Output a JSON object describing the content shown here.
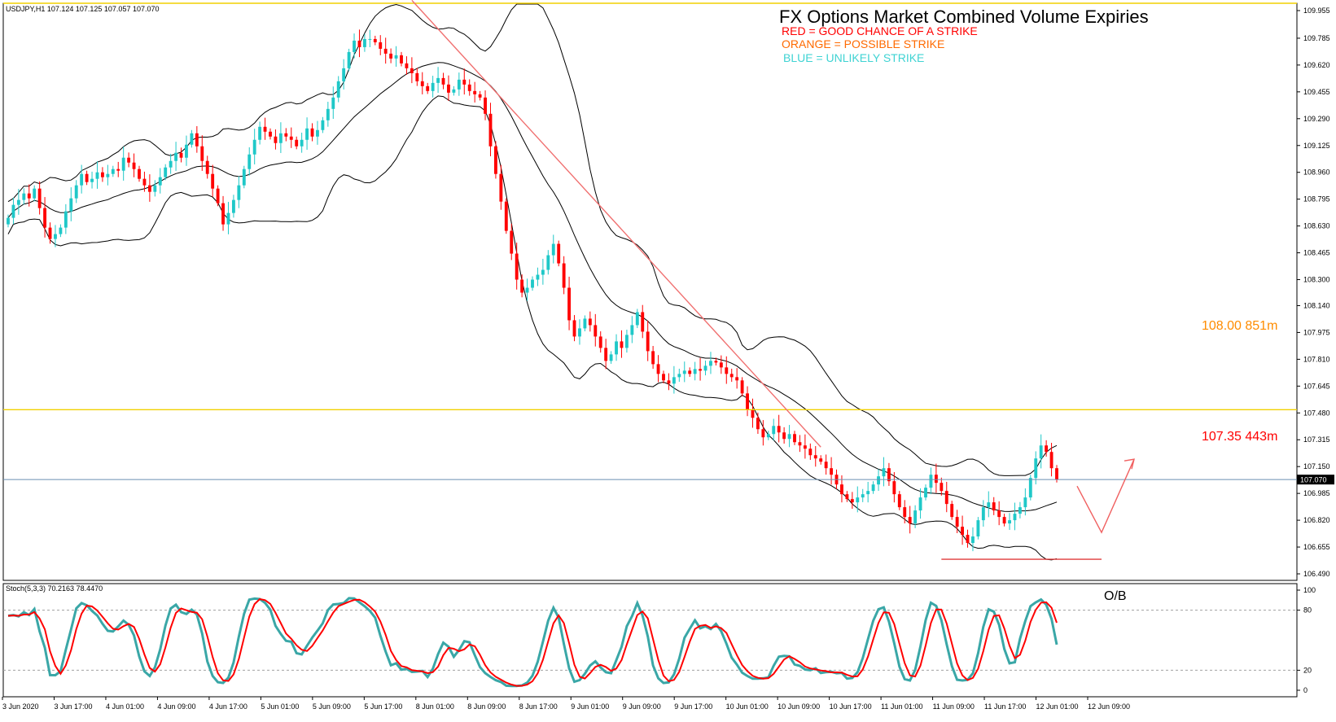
{
  "chart_data": {
    "type": "candlestick",
    "symbol_info": "USDJPY,H1  107.124 107.125 107.057 107.070",
    "title": "FX Options Market Combined Volume Expiries",
    "legend": [
      {
        "text": "RED = GOOD CHANCE OF A STRIKE",
        "color": "#ff0000"
      },
      {
        "text": "ORANGE = POSSIBLE STRIKE",
        "color": "#ff6a00"
      },
      {
        "text": "BLUE = UNLIKELY STRIKE",
        "color": "#3fd3d3"
      }
    ],
    "price_axis": {
      "ticks": [
        "109.955",
        "109.785",
        "109.620",
        "109.455",
        "109.290",
        "109.125",
        "108.960",
        "108.795",
        "108.630",
        "108.465",
        "108.300",
        "108.140",
        "107.975",
        "107.810",
        "107.645",
        "107.480",
        "107.315",
        "107.150",
        "106.985",
        "106.820",
        "106.655",
        "106.490"
      ],
      "range": [
        106.45,
        110.0
      ]
    },
    "current_price": "107.070",
    "levels": [
      {
        "price": 110.0,
        "color": "#f2d000"
      },
      {
        "price": 107.5,
        "color": "#f2d000"
      }
    ],
    "strike_annotations": [
      {
        "text": "108.00 851m",
        "color": "#ff8c00",
        "price": 108.0
      },
      {
        "text": "107.35 443m",
        "color": "#ff0000",
        "price": 107.35
      }
    ],
    "support_line_price": 106.58,
    "time_axis": [
      "3 Jun 2020",
      "3 Jun 17:00",
      "4 Jun 01:00",
      "4 Jun 09:00",
      "4 Jun 17:00",
      "5 Jun 01:00",
      "5 Jun 09:00",
      "5 Jun 17:00",
      "8 Jun 01:00",
      "8 Jun 09:00",
      "8 Jun 17:00",
      "9 Jun 01:00",
      "9 Jun 09:00",
      "9 Jun 17:00",
      "10 Jun 01:00",
      "10 Jun 09:00",
      "10 Jun 17:00",
      "11 Jun 01:00",
      "11 Jun 09:00",
      "11 Jun 17:00",
      "12 Jun 01:00",
      "12 Jun 09:00"
    ],
    "closes": [
      108.68,
      108.76,
      108.79,
      108.83,
      108.8,
      108.86,
      108.74,
      108.62,
      108.55,
      108.58,
      108.62,
      108.72,
      108.8,
      108.88,
      108.95,
      108.9,
      108.92,
      108.96,
      108.93,
      108.95,
      108.98,
      108.97,
      109.05,
      109.02,
      108.98,
      108.92,
      108.88,
      108.84,
      108.88,
      108.93,
      108.99,
      109.03,
      109.08,
      109.05,
      109.13,
      109.2,
      109.12,
      109.03,
      108.95,
      108.86,
      108.77,
      108.64,
      108.71,
      108.79,
      108.88,
      108.98,
      109.07,
      109.16,
      109.24,
      109.21,
      109.18,
      109.14,
      109.2,
      109.18,
      109.16,
      109.12,
      109.16,
      109.23,
      109.18,
      109.22,
      109.28,
      109.35,
      109.42,
      109.52,
      109.6,
      109.7,
      109.77,
      109.73,
      109.78,
      109.78,
      109.76,
      109.72,
      109.69,
      109.66,
      109.68,
      109.63,
      109.6,
      109.57,
      109.52,
      109.49,
      109.46,
      109.51,
      109.54,
      109.5,
      109.45,
      109.47,
      109.53,
      109.5,
      109.46,
      109.44,
      109.42,
      109.32,
      109.12,
      108.95,
      108.78,
      108.6,
      108.46,
      108.3,
      108.22,
      108.25,
      108.3,
      108.33,
      108.36,
      108.45,
      108.52,
      108.4,
      108.25,
      108.05,
      107.95,
      108.0,
      108.06,
      108.02,
      107.95,
      107.88,
      107.8,
      107.84,
      107.92,
      107.88,
      107.96,
      108.02,
      108.1,
      107.98,
      107.86,
      107.78,
      107.72,
      107.68,
      107.66,
      107.7,
      107.72,
      107.74,
      107.72,
      107.75,
      107.74,
      107.77,
      107.8,
      107.79,
      107.76,
      107.72,
      107.7,
      107.68,
      107.6,
      107.5,
      107.45,
      107.38,
      107.33,
      107.35,
      107.4,
      107.36,
      107.32,
      107.35,
      107.3,
      107.28,
      107.26,
      107.22,
      107.2,
      107.18,
      107.14,
      107.1,
      107.04,
      106.98,
      106.95,
      106.93,
      106.96,
      106.98,
      107.0,
      107.04,
      107.09,
      107.14,
      107.06,
      106.98,
      106.9,
      106.84,
      106.8,
      106.88,
      106.96,
      107.02,
      107.1,
      107.05,
      107.0,
      106.92,
      106.84,
      106.78,
      106.73,
      106.68,
      106.72,
      106.82,
      106.9,
      106.93,
      106.88,
      106.84,
      106.8,
      106.82,
      106.86,
      106.9,
      106.96,
      107.08,
      107.2,
      107.28,
      107.24,
      107.14,
      107.07
    ],
    "stochastic": {
      "label": "Stoch(5,3,3) 70.2163 78.4470",
      "ticks": [
        "100",
        "80",
        "20",
        "0"
      ],
      "levels": [
        80,
        20
      ],
      "k_color": "#3aa7a7",
      "d_color": "#ff0000",
      "annotation": "O/B"
    },
    "colors": {
      "bull": "#1fc8c8",
      "bear": "#ff0000",
      "bands": "#000000",
      "trendline": "#f07070",
      "current_line": "#6a8fb0"
    }
  }
}
